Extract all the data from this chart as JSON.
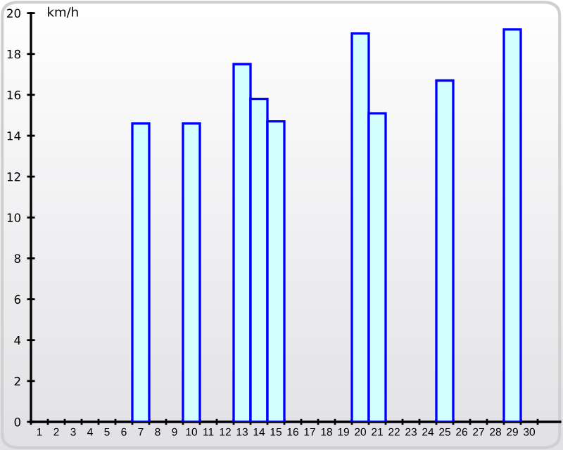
{
  "chart_data": {
    "type": "bar",
    "ylabel": "km/h",
    "categories": [
      "1",
      "2",
      "3",
      "4",
      "5",
      "6",
      "7",
      "8",
      "9",
      "10",
      "11",
      "12",
      "13",
      "14",
      "15",
      "16",
      "17",
      "18",
      "19",
      "20",
      "21",
      "22",
      "23",
      "24",
      "25",
      "26",
      "27",
      "28",
      "29",
      "30"
    ],
    "values": [
      null,
      null,
      null,
      null,
      null,
      null,
      14.6,
      null,
      null,
      14.6,
      null,
      null,
      17.5,
      15.8,
      14.7,
      null,
      null,
      null,
      null,
      19.0,
      15.1,
      null,
      null,
      null,
      16.7,
      null,
      null,
      null,
      19.2,
      null
    ],
    "color": "#d4ffff",
    "ylim": [
      0,
      20
    ],
    "yticks": [
      0,
      2,
      4,
      6,
      8,
      10,
      12,
      14,
      16,
      18,
      20
    ],
    "grid": false,
    "legend": false
  }
}
